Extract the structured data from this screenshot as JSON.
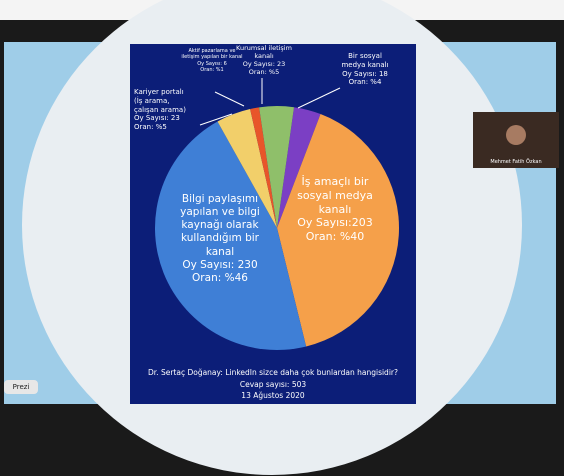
{
  "chart_data": {
    "type": "pie",
    "title": "Dr. Sertaç Doğanay: LinkedIn sizce daha çok bunlardan hangisidir?",
    "subtitle": "Cevap sayısı: 503",
    "date": "13 Ağustos 2020",
    "categories": [
      "Bir sosyal\nmedya kanalı",
      "İş amaçlı bir\nsosyal medya\nkanalı",
      "Bilgi paylaşımı\nyapılan ve bilgi\nkaynağı olarak\nkullandığım bir\nkanal",
      "Kariyer portalı\n(İş arama,\nçalışan arama)",
      "Aktif pazarlama ve\niletişim yapılan bir kanal",
      "Kurumsal iletişim\nkanalı"
    ],
    "values": [
      18,
      203,
      230,
      23,
      6,
      23
    ],
    "value_labels": [
      "Oy Sayısı: 18",
      "Oy Sayısı:203",
      "Oy Sayısı: 230",
      "Oy Sayısı: 23",
      "Oy Sayısı: 6",
      "Oy Sayısı: 23"
    ],
    "percents": [
      4,
      40,
      46,
      5,
      1,
      5
    ],
    "percent_labels": [
      "Oran: %4",
      "Oran: %40",
      "Oran: %46",
      "Oran: %5",
      "Oran: %1",
      "Oran: %5"
    ],
    "colors": [
      "#7b3fc4",
      "#f5a04a",
      "#3f7fd6",
      "#f2cf6a",
      "#e8552a",
      "#8fbf6a"
    ]
  },
  "ui": {
    "presenter": "Mehmet Fatih Özkan",
    "button": "Prezi"
  }
}
